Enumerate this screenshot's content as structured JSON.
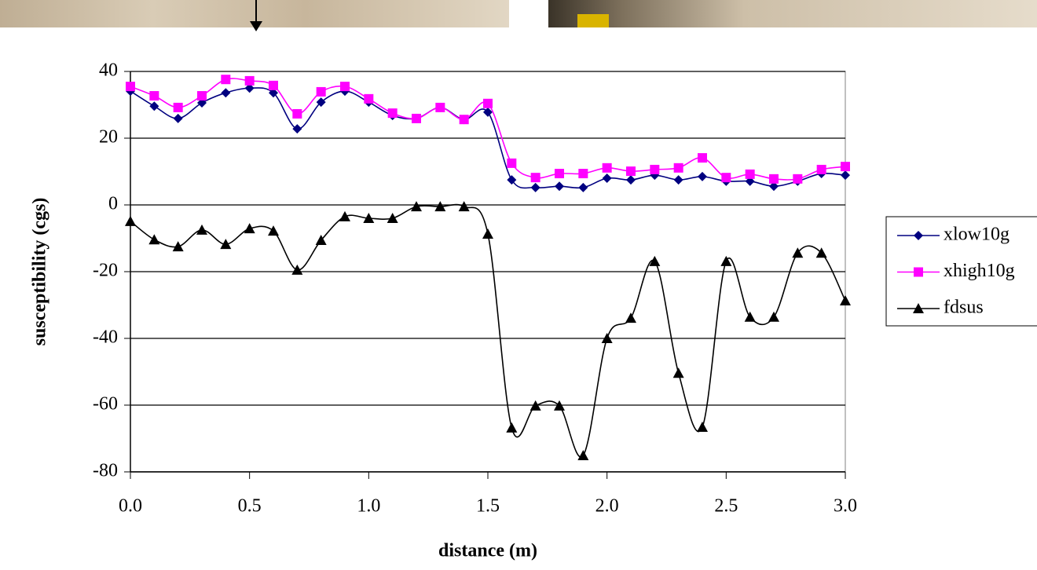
{
  "chart_data": {
    "type": "line",
    "x_label": "distance (m)",
    "y_label": "susceptibility (cgs)",
    "x": [
      0,
      0.1,
      0.2,
      0.3,
      0.4,
      0.5,
      0.6,
      0.7,
      0.8,
      0.9,
      1.0,
      1.1,
      1.2,
      1.3,
      1.4,
      1.5,
      1.6,
      1.7,
      1.8,
      1.9,
      2.0,
      2.1,
      2.2,
      2.3,
      2.4,
      2.5,
      2.6,
      2.7,
      2.8,
      2.9,
      3.0
    ],
    "series": [
      {
        "name": "xlow10g",
        "color": "#000080",
        "marker": "diamond",
        "values": [
          34.1,
          29.6,
          25.9,
          30.6,
          33.6,
          35,
          33.6,
          22.8,
          30.8,
          34.1,
          30.8,
          26.8,
          25.9,
          29.2,
          25.6,
          27.8,
          7.5,
          5.2,
          5.6,
          5.2,
          8,
          7.5,
          8.9,
          7.5,
          8.5,
          7.1,
          7.1,
          5.6,
          7.1,
          9.4,
          8.9
        ]
      },
      {
        "name": "xhigh10g",
        "color": "#ff00ff",
        "marker": "square",
        "values": [
          35.5,
          32.7,
          29.2,
          32.7,
          37.6,
          37.2,
          35.8,
          27.3,
          33.9,
          35.5,
          31.8,
          27.5,
          25.9,
          29.2,
          25.6,
          30.4,
          12.5,
          8.2,
          9.4,
          9.4,
          11.1,
          10.1,
          10.6,
          11.1,
          14.1,
          8.2,
          9.2,
          7.8,
          7.8,
          10.6,
          11.5
        ]
      },
      {
        "name": "fdsus",
        "color": "#000000",
        "marker": "triangle",
        "values": [
          -4.9,
          -10.4,
          -12.5,
          -7.5,
          -11.8,
          -7.1,
          -7.8,
          -19.5,
          -10.6,
          -3.5,
          -4,
          -4,
          -0.5,
          -0.5,
          -0.5,
          -8.7,
          -66.8,
          -60.2,
          -60.2,
          -75.1,
          -40,
          -33.9,
          -16.9,
          -50.4,
          -66.6,
          -16.9,
          -33.6,
          -33.6,
          -14.4,
          -14.4,
          -28.7
        ]
      }
    ],
    "xlim": [
      0,
      3
    ],
    "ylim": [
      -80,
      40
    ],
    "xticks": [
      {
        "value": 0,
        "label": "0.0"
      },
      {
        "value": 0.5,
        "label": "0.5"
      },
      {
        "value": 1.0,
        "label": "1.0"
      },
      {
        "value": 1.5,
        "label": "1.5"
      },
      {
        "value": 2.0,
        "label": "2.0"
      },
      {
        "value": 2.5,
        "label": "2.5"
      },
      {
        "value": 3.0,
        "label": "3.0"
      }
    ],
    "yticks": [
      40,
      20,
      0,
      -20,
      -40,
      -60,
      -80
    ],
    "grid": true,
    "smooth": true,
    "legend": "right"
  }
}
